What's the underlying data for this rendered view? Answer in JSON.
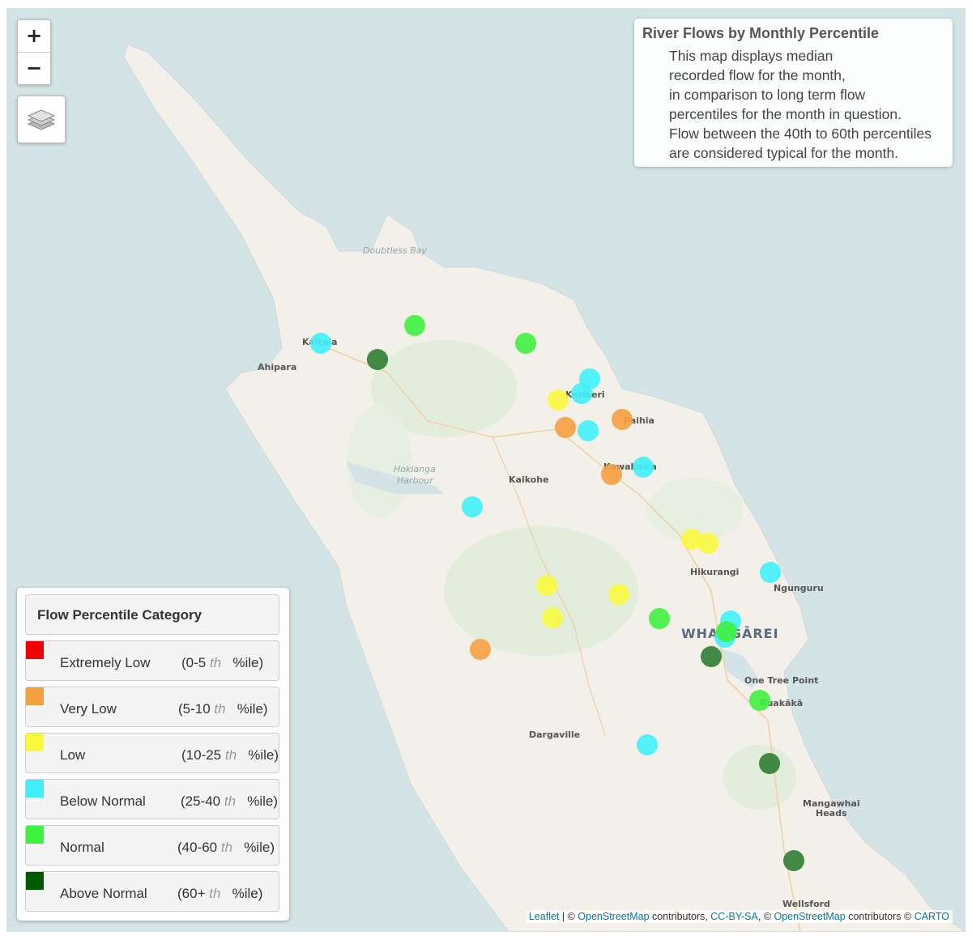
{
  "zoom": {
    "in_label": "+",
    "out_label": "−"
  },
  "layers": {
    "icon": "layers-icon"
  },
  "info": {
    "title": "River Flows by Monthly Percentile",
    "lines": [
      "This map displays median",
      "recorded flow for the month,",
      "in comparison to long term flow",
      "percentiles for the month in question.",
      "Flow between the 40th to 60th percentiles",
      "are considered typical for the month."
    ]
  },
  "legend": {
    "title": "Flow Percentile Category",
    "items": [
      {
        "name": "Extremely Low",
        "range_prefix": "(0-5",
        "th": "th",
        "suffix": "%ile)",
        "color": "#f00000"
      },
      {
        "name": "Very Low",
        "range_prefix": "(5-10",
        "th": "th",
        "suffix": "%ile)",
        "color": "#f5a040"
      },
      {
        "name": "Low",
        "range_prefix": "(10-25",
        "th": "th",
        "suffix": "%ile)",
        "color": "#f8f840"
      },
      {
        "name": "Below Normal",
        "range_prefix": "(25-40",
        "th": "th",
        "suffix": "%ile)",
        "color": "#40f0f8"
      },
      {
        "name": "Normal",
        "range_prefix": "(40-60",
        "th": "th",
        "suffix": "%ile)",
        "color": "#40f040"
      },
      {
        "name": "Above Normal",
        "range_prefix": "(60+",
        "th": "th",
        "suffix": "%ile)",
        "color": "#005a00"
      }
    ]
  },
  "places": {
    "doubtless_bay": "Doubtless Bay",
    "kaitaia": "Kaitaia",
    "ahipara": "Ahipara",
    "kerikeri": "Kerikeri",
    "paihia": "Paihia",
    "kawakawa": "Kawakawa",
    "hokianga_1": "Hokianga",
    "hokianga_2": "Harbour",
    "kaikohe": "Kaikohe",
    "hikurangi": "Hikurangi",
    "ngunguru": "Ngunguru",
    "whangarei": "WHANGĀREI",
    "one_tree_point": "One Tree Point",
    "ruakaka": "Ruakākā",
    "dargaville": "Dargaville",
    "mangawhai_1": "Mangawhai",
    "mangawhai_2": "Heads",
    "wellsford": "Wellsford"
  },
  "stations": [
    {
      "category": "Below Normal",
      "color": "#40f0f8"
    },
    {
      "category": "Above Normal",
      "color": "#2e7d32"
    },
    {
      "category": "Normal",
      "color": "#40f040"
    },
    {
      "category": "Normal",
      "color": "#40f040"
    },
    {
      "category": "Below Normal",
      "color": "#40f0f8"
    },
    {
      "category": "Below Normal",
      "color": "#40f0f8"
    },
    {
      "category": "Low",
      "color": "#f8f840"
    },
    {
      "category": "Very Low",
      "color": "#f5a040"
    },
    {
      "category": "Below Normal",
      "color": "#40f0f8"
    },
    {
      "category": "Very Low",
      "color": "#f5a040"
    },
    {
      "category": "Below Normal",
      "color": "#40f0f8"
    },
    {
      "category": "Very Low",
      "color": "#f5a040"
    },
    {
      "category": "Below Normal",
      "color": "#40f0f8"
    },
    {
      "category": "Low",
      "color": "#f8f840"
    },
    {
      "category": "Low",
      "color": "#f8f840"
    },
    {
      "category": "Below Normal",
      "color": "#40f0f8"
    },
    {
      "category": "Low",
      "color": "#f8f840"
    },
    {
      "category": "Low",
      "color": "#f8f840"
    },
    {
      "category": "Low",
      "color": "#f8f840"
    },
    {
      "category": "Normal",
      "color": "#40f040"
    },
    {
      "category": "Below Normal",
      "color": "#40f0f8"
    },
    {
      "category": "Below Normal",
      "color": "#40f0f8"
    },
    {
      "category": "Normal",
      "color": "#40f040"
    },
    {
      "category": "Above Normal",
      "color": "#2e7d32"
    },
    {
      "category": "Very Low",
      "color": "#f5a040"
    },
    {
      "category": "Normal",
      "color": "#40f040"
    },
    {
      "category": "Below Normal",
      "color": "#40f0f8"
    },
    {
      "category": "Above Normal",
      "color": "#2e7d32"
    },
    {
      "category": "Above Normal",
      "color": "#2e7d32"
    }
  ],
  "attribution": {
    "leaflet": "Leaflet",
    "sep1": " | © ",
    "osm1": "OpenStreetMap",
    "contrib1": " contributors, ",
    "ccbysa": "CC-BY-SA",
    "sep2": ", © ",
    "osm2": "OpenStreetMap",
    "contrib2": " contributors © ",
    "carto": "CARTO"
  }
}
